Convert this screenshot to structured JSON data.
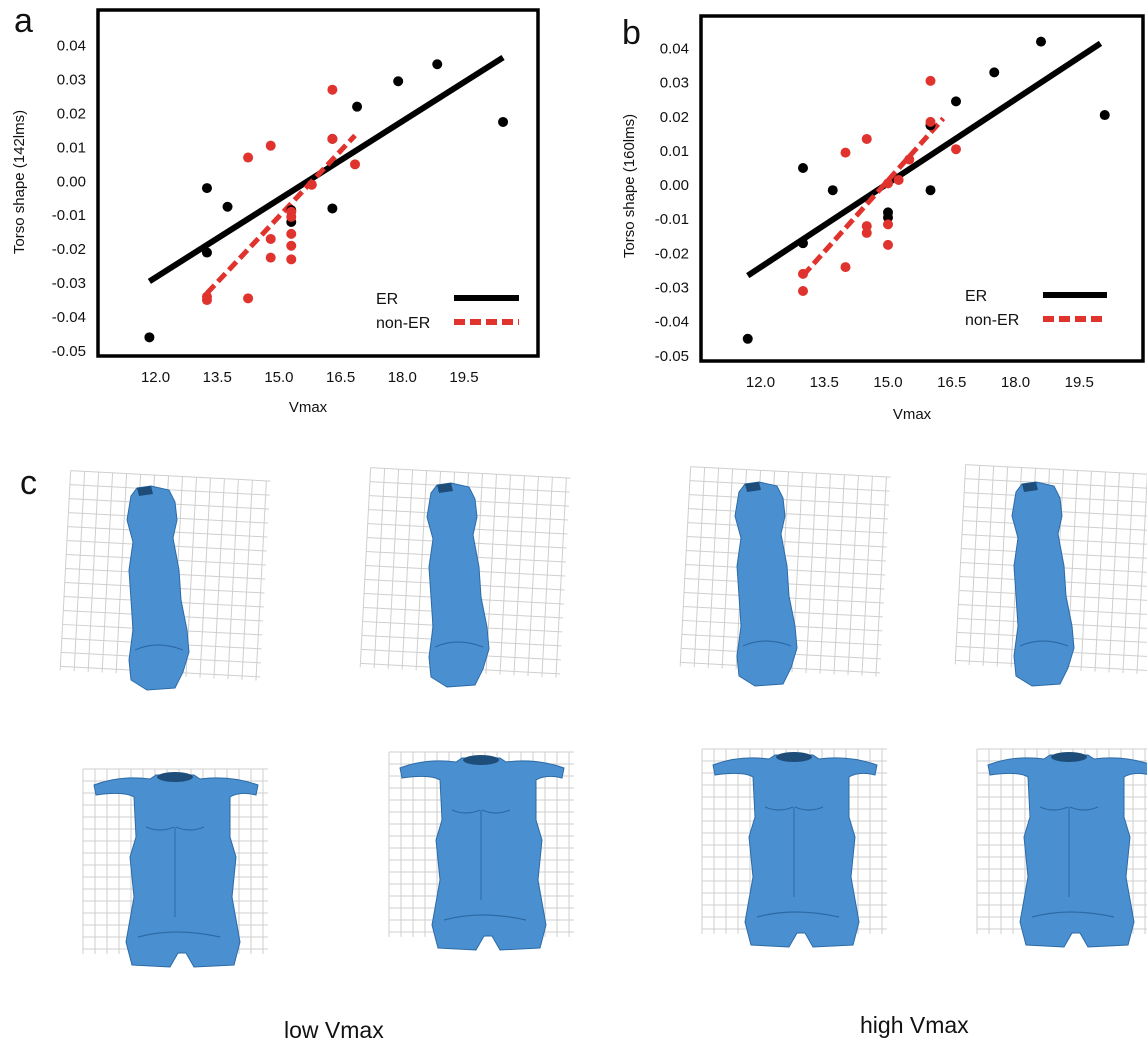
{
  "panel_labels": {
    "a": "a",
    "b": "b",
    "c": "c"
  },
  "captions": {
    "low": "low Vmax",
    "high": "high Vmax"
  },
  "colors": {
    "er": "#000000",
    "non_er": "#e0332d",
    "body": "#4a90d0",
    "grid": "#cfcfcf"
  },
  "chart_data": [
    {
      "type": "scatter",
      "panel": "a",
      "xlabel": "Vmax",
      "ylabel": "Torso shape (142lms)",
      "xticks": [
        "12.0",
        "13.5",
        "15.0",
        "16.5",
        "18.0",
        "19.5"
      ],
      "xtick_values": [
        12.0,
        13.5,
        15.0,
        16.5,
        18.0,
        19.5
      ],
      "yticks": [
        "0.04",
        "0.03",
        "0.02",
        "0.01",
        "0.00",
        "-0.01",
        "-0.02",
        "-0.03",
        "-0.04",
        "-0.05"
      ],
      "ytick_values": [
        0.04,
        0.03,
        0.02,
        0.01,
        0.0,
        -0.01,
        -0.02,
        -0.03,
        -0.04,
        -0.05
      ],
      "xlim": [
        10.6,
        21.3
      ],
      "ylim": [
        -0.0515,
        0.0505
      ],
      "legend_position": "bottom-right",
      "series": [
        {
          "name": "ER",
          "color": "#000000",
          "x": [
            11.85,
            13.25,
            13.25,
            13.75,
            15.3,
            15.3,
            16.3,
            16.3,
            16.9,
            17.9,
            18.85,
            20.45
          ],
          "y": [
            -0.046,
            -0.021,
            -0.002,
            -0.0075,
            -0.0085,
            -0.012,
            0.0125,
            -0.008,
            0.022,
            0.0295,
            0.0345,
            0.0175
          ],
          "fit": {
            "x": [
              11.85,
              20.45
            ],
            "y": [
              -0.0295,
              0.0365
            ],
            "dash": false
          }
        },
        {
          "name": "non-ER",
          "color": "#e0332d",
          "x": [
            13.25,
            13.25,
            14.25,
            14.25,
            14.8,
            14.8,
            14.8,
            15.3,
            15.3,
            15.3,
            15.3,
            15.3,
            15.8,
            16.3,
            16.3,
            16.85
          ],
          "y": [
            -0.034,
            -0.035,
            0.007,
            -0.0345,
            0.0105,
            -0.017,
            -0.0225,
            -0.0105,
            -0.0155,
            -0.019,
            -0.023,
            -0.009,
            -0.001,
            0.0125,
            0.027,
            0.005
          ],
          "fit": {
            "x": [
              13.25,
              16.85
            ],
            "y": [
              -0.033,
              0.0135
            ],
            "dash": true
          }
        }
      ]
    },
    {
      "type": "scatter",
      "panel": "b",
      "xlabel": "Vmax",
      "ylabel": "Torso shape (160lms)",
      "xticks": [
        "12.0",
        "13.5",
        "15.0",
        "16.5",
        "18.0",
        "19.5"
      ],
      "xtick_values": [
        12.0,
        13.5,
        15.0,
        16.5,
        18.0,
        19.5
      ],
      "yticks": [
        "0.04",
        "0.03",
        "0.02",
        "0.01",
        "0.00",
        "-0.01",
        "-0.02",
        "-0.03",
        "-0.04",
        "-0.05"
      ],
      "ytick_values": [
        0.04,
        0.03,
        0.02,
        0.01,
        0.0,
        -0.01,
        -0.02,
        -0.03,
        -0.04,
        -0.05
      ],
      "xlim": [
        10.6,
        21.0
      ],
      "ylim": [
        -0.0515,
        0.0495
      ],
      "legend_position": "bottom-right",
      "series": [
        {
          "name": "ER",
          "color": "#000000",
          "x": [
            11.7,
            13.0,
            13.0,
            13.7,
            15.0,
            15.0,
            16.0,
            16.0,
            16.6,
            17.5,
            18.6,
            20.1
          ],
          "y": [
            -0.045,
            -0.017,
            0.005,
            -0.0015,
            -0.008,
            -0.0095,
            -0.0015,
            0.0175,
            0.0245,
            0.033,
            0.042,
            0.0205
          ],
          "fit": {
            "x": [
              11.7,
              20.0
            ],
            "y": [
              -0.0265,
              0.0415
            ],
            "dash": false
          }
        },
        {
          "name": "non-ER",
          "color": "#e0332d",
          "x": [
            13.0,
            13.0,
            14.0,
            14.0,
            14.5,
            14.5,
            14.5,
            15.0,
            15.0,
            15.0,
            15.25,
            15.5,
            16.0,
            16.0,
            16.6
          ],
          "y": [
            -0.026,
            -0.031,
            0.0095,
            -0.024,
            0.0135,
            -0.012,
            -0.014,
            -0.0115,
            -0.0175,
            0.0005,
            0.0015,
            0.0075,
            0.0305,
            0.0185,
            0.0105
          ],
          "fit": {
            "x": [
              13.0,
              16.3
            ],
            "y": [
              -0.0265,
              0.0195
            ],
            "dash": true
          }
        }
      ]
    }
  ]
}
